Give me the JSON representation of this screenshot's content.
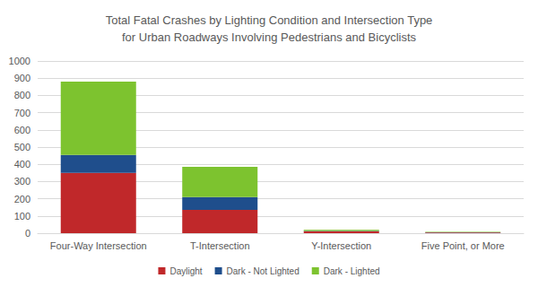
{
  "chart_data": {
    "type": "bar",
    "title": "Total Fatal Crashes by Lighting Condition and Intersection Type\nfor Urban Roadways Involving Pedestrians and Bicyclists",
    "categories": [
      "Four-Way Intersection",
      "T-Intersection",
      "Y-Intersection",
      "Five Point, or More"
    ],
    "series": [
      {
        "name": "Daylight",
        "color": "#c0282a",
        "values": [
          350,
          135,
          10,
          4
        ]
      },
      {
        "name": "Dark - Not Lighted",
        "color": "#1f4e8c",
        "values": [
          105,
          75,
          3,
          1
        ]
      },
      {
        "name": "Dark - Lighted",
        "color": "#7dc32f",
        "values": [
          425,
          175,
          7,
          3
        ]
      }
    ],
    "ylim": [
      0,
      1000
    ],
    "yticks": [
      0,
      100,
      200,
      300,
      400,
      500,
      600,
      700,
      800,
      900,
      1000
    ],
    "stacked": true,
    "grid": true,
    "legend": "bottom"
  }
}
